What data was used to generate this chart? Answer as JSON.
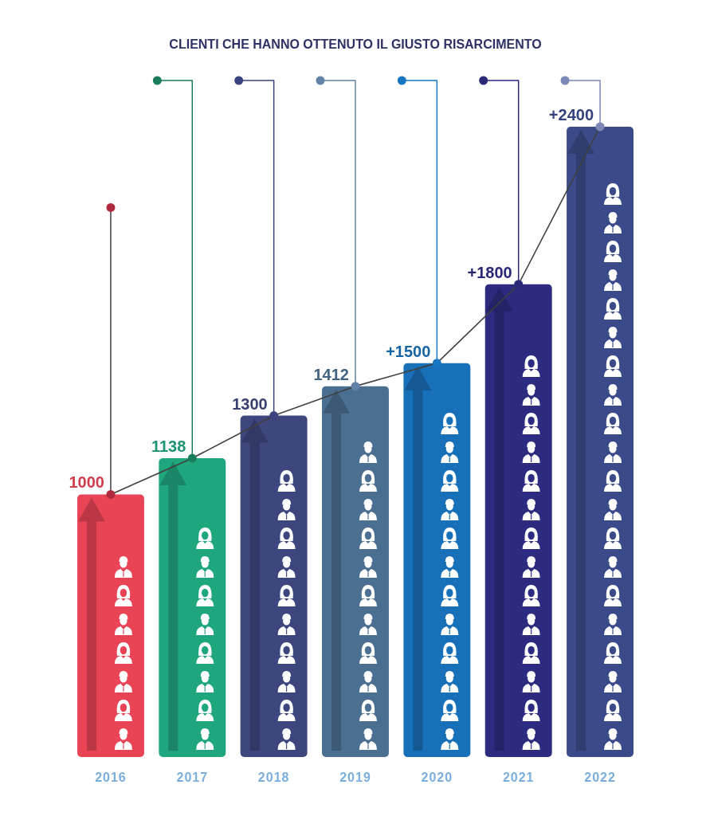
{
  "chart_data": {
    "type": "bar",
    "title": "CLIENTI CHE HANNO OTTENUTO IL GIUSTO RISARCIMENTO",
    "categories": [
      "2016",
      "2017",
      "2018",
      "2019",
      "2020",
      "2021",
      "2022"
    ],
    "series": [
      {
        "values": [
          1000,
          1138,
          1300,
          1412,
          1500,
          1800,
          2400
        ],
        "colors": [
          "#e84455",
          "#20a67f",
          "#3e467e",
          "#4a6f91",
          "#1770b8",
          "#2c2b80",
          "#3b4b8a"
        ],
        "value_labels": [
          "1000",
          "1138",
          "1300",
          "1412",
          "+1500",
          "+1800",
          "+2400"
        ]
      },
      {
        "type": "line",
        "values": [
          1000,
          1138,
          1300,
          1412,
          1500,
          1800,
          2400
        ],
        "color": "#404040",
        "colors": [
          "#b02a3c",
          "#1a7c5c",
          "#3a4280",
          "#6382a8",
          "#1677c0",
          "#2a2878",
          "#7c88b5"
        ]
      }
    ],
    "marker": "circle"
  }
}
